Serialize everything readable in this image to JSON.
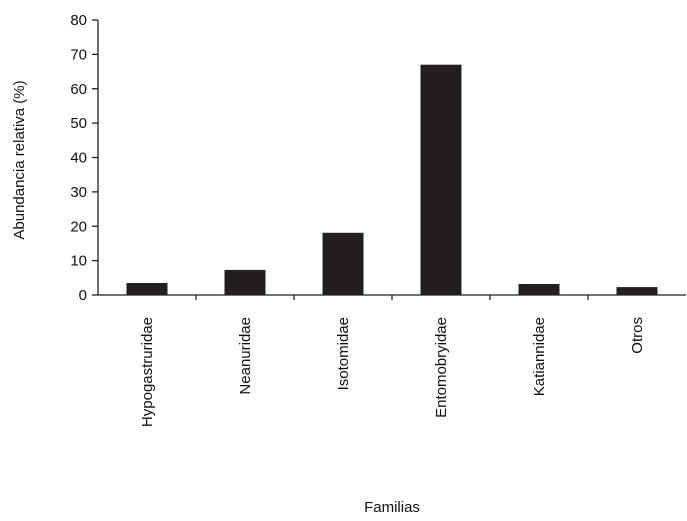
{
  "chart_data": {
    "type": "bar",
    "categories": [
      "Hypogastruridae",
      "Neanuridae",
      "Isotomidae",
      "Entomobryidae",
      "Katiannidae",
      "Otros"
    ],
    "values": [
      3.5,
      7.3,
      18.1,
      67,
      3.2,
      2.3
    ],
    "xlabel": "Familias",
    "ylabel": "Abundancia relativa (%)",
    "ylim": [
      0,
      80
    ],
    "yticks": [
      0,
      10,
      20,
      30,
      40,
      50,
      60,
      70,
      80
    ],
    "bar_color": "#231f20",
    "grid": false,
    "legend": "none"
  }
}
